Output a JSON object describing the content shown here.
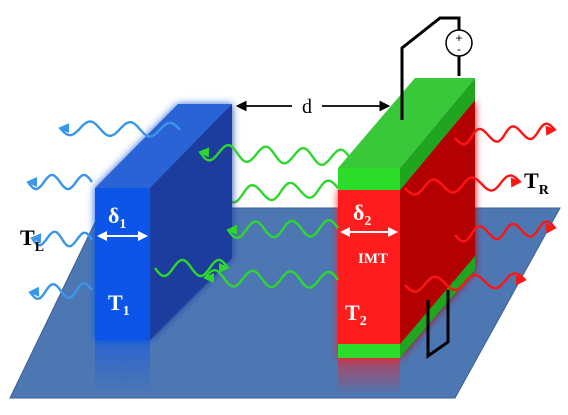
{
  "labels": {
    "left_temp": {
      "main": "T",
      "sub": "L"
    },
    "right_temp": {
      "main": "T",
      "sub": "R"
    },
    "slab1_thickness": {
      "main": "δ",
      "sub": "1"
    },
    "slab1_temp": {
      "main": "T",
      "sub": "1"
    },
    "slab2_thickness": {
      "main": "δ",
      "sub": "2"
    },
    "slab2_temp": {
      "main": "T",
      "sub": "2"
    },
    "slab2_material": "IMT",
    "gap": "d",
    "source_plus": "+",
    "source_minus": "-"
  },
  "colors": {
    "plate": "#4d77b3",
    "slab1_front": "#0e55e8",
    "slab1_side": "#1a3c9e",
    "slab1_top": "#2a63d6",
    "slab2_front": "#ff1a1a",
    "slab2_side": "#b30000",
    "coat_front": "#2bdc2b",
    "coat_top": "#39c839",
    "wave_blue": "#3a96e8",
    "wave_green": "#2ed62e",
    "wave_red": "#ff1414",
    "arrow": "#000000"
  }
}
